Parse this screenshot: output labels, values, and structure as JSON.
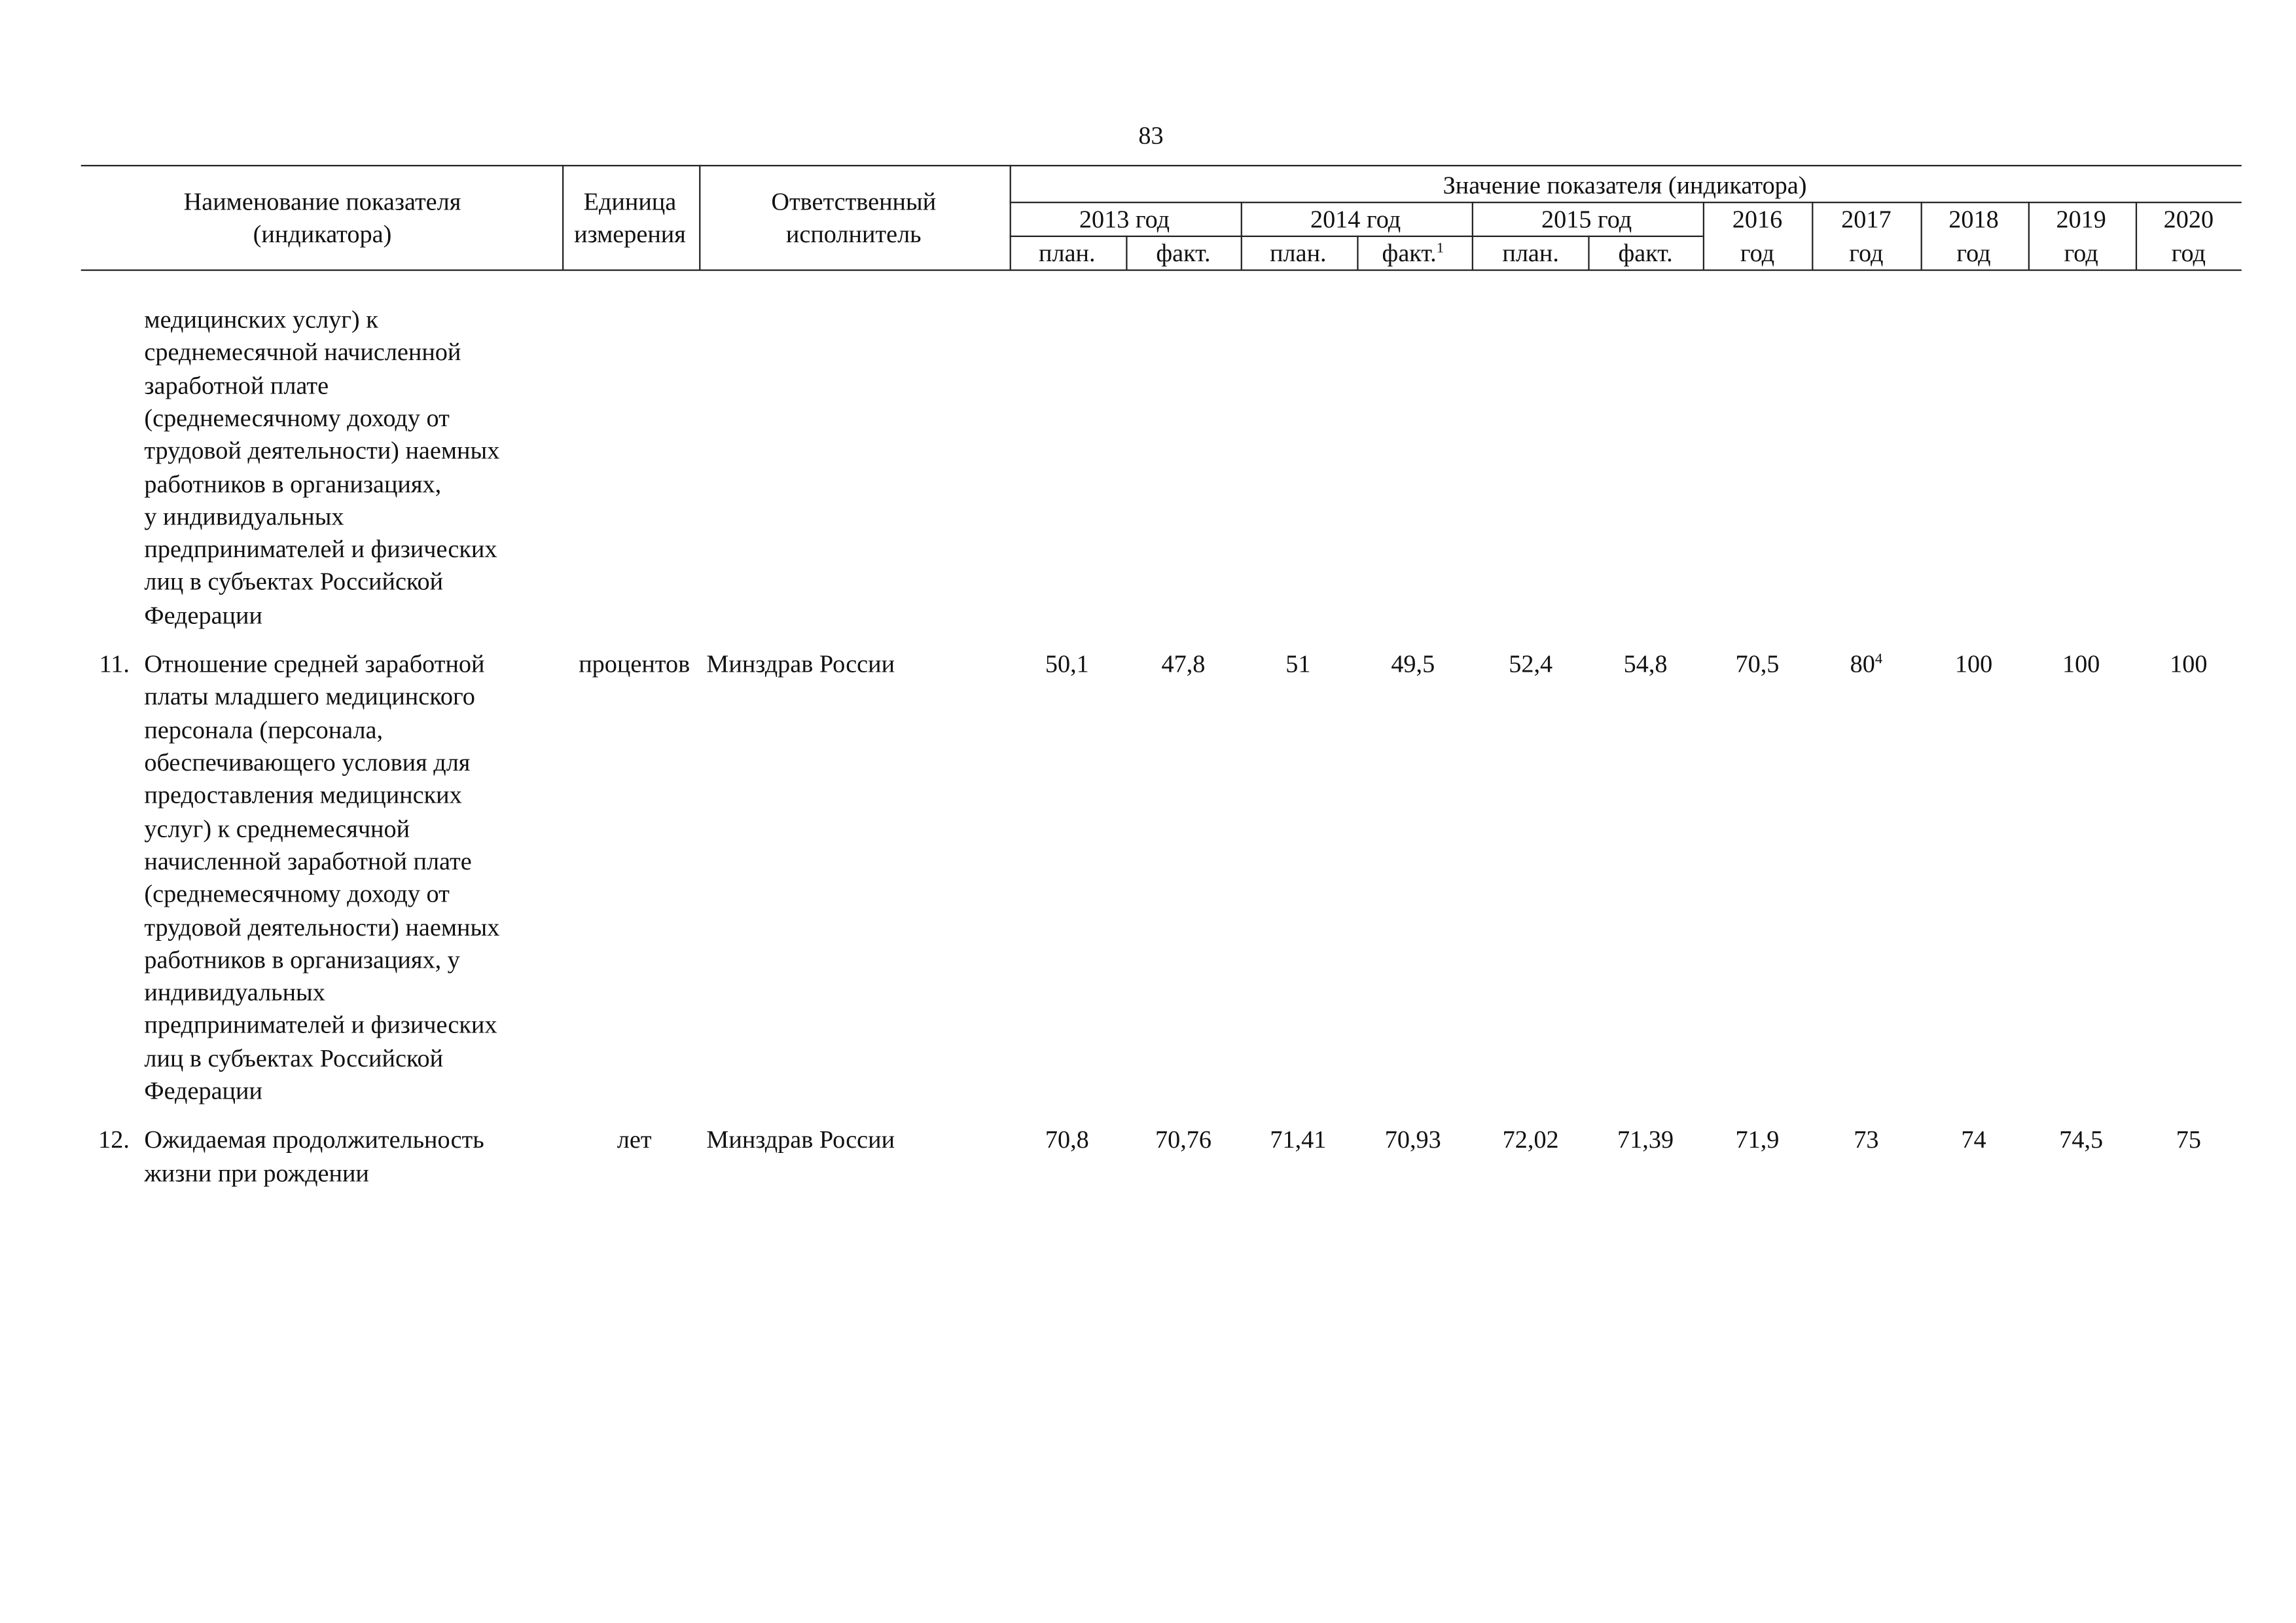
{
  "page_number": "83",
  "header": {
    "name": [
      "Наименование показателя",
      "(индикатора)"
    ],
    "unit": [
      "Единица",
      "измерения"
    ],
    "executor": [
      "Ответственный",
      "исполнитель"
    ],
    "values_title": "Значение показателя (индикатора)",
    "years": [
      "2013 год",
      "2014 год",
      "2015 год"
    ],
    "subheads": [
      {
        "text": "план."
      },
      {
        "text": "факт."
      },
      {
        "text": "план."
      },
      {
        "text": "факт.",
        "note": "1"
      },
      {
        "text": "план."
      },
      {
        "text": "факт."
      }
    ],
    "single_years": [
      {
        "year": "2016",
        "unit": "год"
      },
      {
        "year": "2017",
        "unit": "год"
      },
      {
        "year": "2018",
        "unit": "год"
      },
      {
        "year": "2019",
        "unit": "год"
      },
      {
        "year": "2020",
        "unit": "год"
      }
    ]
  },
  "rows": [
    {
      "name": [
        "медицинских услуг) к",
        "среднемесячной начисленной",
        "заработной плате",
        "(среднемесячному доходу от",
        "трудовой деятельности) наемных",
        "работников в организациях,",
        "у индивидуальных",
        "предпринимателей и физических",
        "лиц  в субъектах Российской",
        "Федерации"
      ]
    },
    {
      "number": "11.",
      "name": [
        "Отношение средней заработной",
        "платы младшего медицинского",
        "персонала (персонала,",
        "обеспечивающего условия для",
        "предоставления медицинских",
        "услуг) к среднемесячной",
        "начисленной заработной плате",
        "(среднемесячному доходу от",
        "трудовой деятельности) наемных",
        "работников в организациях, у",
        "индивидуальных",
        "предпринимателей и физических",
        "лиц в субъектах Российской",
        "Федерации"
      ],
      "unit": "процентов",
      "executor": "Минздрав России",
      "values": [
        {
          "text": "50,1"
        },
        {
          "text": "47,8"
        },
        {
          "text": "51"
        },
        {
          "text": "49,5"
        },
        {
          "text": "52,4"
        },
        {
          "text": "54,8"
        },
        {
          "text": "70,5"
        },
        {
          "text": "80",
          "note": "4"
        },
        {
          "text": "100"
        },
        {
          "text": "100"
        },
        {
          "text": "100"
        }
      ]
    },
    {
      "number": "12.",
      "name": [
        "Ожидаемая продолжительность",
        "жизни при рождении"
      ],
      "unit": "лет",
      "executor": "Минздрав России",
      "values": [
        {
          "text": "70,8"
        },
        {
          "text": "70,76"
        },
        {
          "text": "71,41"
        },
        {
          "text": "70,93"
        },
        {
          "text": "72,02"
        },
        {
          "text": "71,39"
        },
        {
          "text": "71,9"
        },
        {
          "text": "73"
        },
        {
          "text": "74"
        },
        {
          "text": "74,5"
        },
        {
          "text": "75"
        }
      ]
    }
  ]
}
